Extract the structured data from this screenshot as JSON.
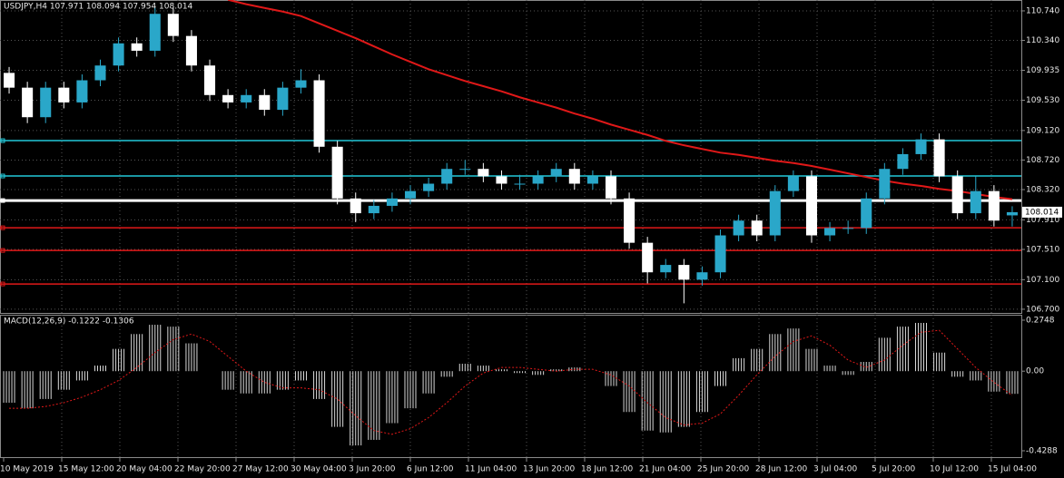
{
  "chart_data": {
    "type": "candlestick",
    "title": "USDJPY,H4  107.971 108.094 107.954 108.014",
    "xlabels": [
      "10 May 2019",
      "15 May 12:00",
      "20 May 04:00",
      "22 May 20:00",
      "27 May 12:00",
      "30 May 04:00",
      "3 Jun 20:00",
      "6 Jun 12:00",
      "11 Jun 04:00",
      "13 Jun 20:00",
      "18 Jun 12:00",
      "21 Jun 04:00",
      "25 Jun 20:00",
      "28 Jun 12:00",
      "3 Jul 04:00",
      "5 Jul 20:00",
      "10 Jul 12:00",
      "15 Jul 04:00"
    ],
    "open": [
      109.9,
      109.7,
      109.3,
      109.7,
      109.5,
      109.8,
      110.0,
      110.3,
      110.2,
      110.7,
      110.4,
      110.0,
      109.6,
      109.5,
      109.6,
      109.4,
      109.7,
      109.8,
      108.9,
      108.2,
      108.0,
      108.1,
      108.2,
      108.3,
      108.4,
      108.6,
      108.6,
      108.5,
      108.4,
      108.4,
      108.5,
      108.6,
      108.4,
      108.5,
      108.2,
      107.6,
      107.2,
      107.3,
      107.1,
      107.2,
      107.7,
      107.9,
      107.7,
      108.3,
      108.5,
      107.7,
      107.8,
      107.8,
      108.2,
      108.6,
      108.8,
      109.0,
      108.5,
      108.0,
      108.3,
      107.971
    ],
    "high": [
      109.98,
      109.78,
      109.78,
      109.78,
      109.88,
      110.08,
      110.38,
      110.38,
      110.78,
      110.78,
      110.48,
      110.08,
      109.68,
      109.68,
      109.68,
      109.78,
      109.95,
      109.88,
      108.98,
      108.28,
      108.18,
      108.28,
      108.38,
      108.48,
      108.68,
      108.72,
      108.68,
      108.58,
      108.52,
      108.58,
      108.68,
      108.68,
      108.58,
      108.58,
      108.28,
      107.68,
      107.38,
      107.38,
      107.28,
      107.78,
      107.98,
      107.98,
      108.38,
      108.58,
      108.58,
      107.88,
      107.9,
      108.28,
      108.68,
      108.88,
      109.08,
      109.08,
      108.58,
      108.5,
      108.38,
      108.094
    ],
    "low": [
      109.62,
      109.22,
      109.22,
      109.42,
      109.42,
      109.72,
      109.92,
      110.12,
      110.12,
      110.32,
      109.92,
      109.52,
      109.42,
      109.42,
      109.32,
      109.32,
      109.62,
      108.82,
      108.12,
      107.88,
      107.92,
      108.02,
      108.12,
      108.22,
      108.32,
      108.52,
      108.42,
      108.32,
      108.32,
      108.32,
      108.42,
      108.32,
      108.32,
      108.12,
      107.52,
      107.05,
      107.12,
      106.78,
      107.02,
      107.12,
      107.62,
      107.62,
      107.62,
      108.22,
      107.6,
      107.62,
      107.72,
      107.72,
      108.12,
      108.52,
      108.72,
      108.42,
      107.92,
      107.92,
      107.82,
      107.82
    ],
    "close": [
      109.7,
      109.3,
      109.7,
      109.5,
      109.8,
      110.0,
      110.3,
      110.2,
      110.7,
      110.4,
      110.0,
      109.6,
      109.5,
      109.6,
      109.4,
      109.7,
      109.8,
      108.9,
      108.2,
      108.0,
      108.1,
      108.2,
      108.3,
      108.4,
      108.6,
      108.6,
      108.5,
      108.4,
      108.4,
      108.5,
      108.6,
      108.4,
      108.5,
      108.2,
      107.6,
      107.2,
      107.3,
      107.1,
      107.2,
      107.7,
      107.9,
      107.7,
      108.3,
      108.5,
      107.7,
      107.8,
      107.8,
      108.2,
      108.6,
      108.8,
      109.0,
      108.5,
      108.0,
      108.3,
      107.9,
      108.014
    ],
    "bull_color": "#2aa7c9",
    "bear_color": "#ffffff",
    "ma": {
      "color": "#e01818",
      "values": [
        null,
        null,
        null,
        null,
        null,
        null,
        null,
        null,
        null,
        null,
        null,
        null,
        110.89,
        110.83,
        110.78,
        110.73,
        110.67,
        110.57,
        110.47,
        110.37,
        110.26,
        110.15,
        110.05,
        109.95,
        109.87,
        109.79,
        109.72,
        109.65,
        109.57,
        109.5,
        109.43,
        109.35,
        109.28,
        109.2,
        109.13,
        109.06,
        108.98,
        108.92,
        108.87,
        108.82,
        108.79,
        108.75,
        108.71,
        108.68,
        108.64,
        108.59,
        108.54,
        108.49,
        108.44,
        108.4,
        108.37,
        108.33,
        108.3,
        108.26,
        108.22,
        108.19
      ]
    },
    "levels": [
      {
        "value": 108.983,
        "color": "#22c8d8"
      },
      {
        "value": 108.504,
        "color": "#22c8d8"
      },
      {
        "value": 108.172,
        "color": "#ffffff"
      },
      {
        "value": 107.803,
        "color": "#e01818"
      },
      {
        "value": 107.496,
        "color": "#e01818"
      },
      {
        "value": 107.042,
        "color": "#e01818"
      }
    ],
    "last_price": 108.014,
    "ylim": [
      106.65,
      110.887
    ],
    "yticks": [
      {
        "value": 110.74,
        "label": "110.740"
      },
      {
        "value": 110.34,
        "label": "110.340"
      },
      {
        "value": 109.935,
        "label": "109.935"
      },
      {
        "value": 109.53,
        "label": "109.530"
      },
      {
        "value": 109.12,
        "label": "109.120"
      },
      {
        "value": 108.72,
        "label": "108.720"
      },
      {
        "value": 108.32,
        "label": "108.320"
      },
      {
        "value": 107.91,
        "label": "107.910"
      },
      {
        "value": 107.51,
        "label": "107.510"
      },
      {
        "value": 107.1,
        "label": "107.100"
      },
      {
        "value": 106.7,
        "label": "106.700"
      }
    ],
    "grid": true,
    "macd": {
      "title": "MACD(12,26,9) -0.1222 -0.1306",
      "histogram": [
        -0.17,
        -0.2,
        -0.15,
        -0.1,
        -0.05,
        0.03,
        0.12,
        0.2,
        0.25,
        0.24,
        0.15,
        0.0,
        -0.1,
        -0.12,
        -0.12,
        -0.1,
        -0.05,
        -0.15,
        -0.3,
        -0.4,
        -0.37,
        -0.28,
        -0.2,
        -0.12,
        -0.03,
        0.04,
        0.03,
        0.01,
        -0.01,
        -0.02,
        0.01,
        0.02,
        0.0,
        -0.08,
        -0.22,
        -0.32,
        -0.33,
        -0.3,
        -0.22,
        -0.08,
        0.07,
        0.12,
        0.2,
        0.23,
        0.12,
        0.03,
        -0.02,
        0.05,
        0.18,
        0.24,
        0.26,
        0.1,
        -0.03,
        -0.05,
        -0.11,
        -0.1222
      ],
      "signal": [
        -0.2,
        -0.2,
        -0.19,
        -0.17,
        -0.14,
        -0.1,
        -0.05,
        0.02,
        0.1,
        0.17,
        0.2,
        0.16,
        0.08,
        0.0,
        -0.06,
        -0.09,
        -0.09,
        -0.1,
        -0.15,
        -0.24,
        -0.32,
        -0.34,
        -0.31,
        -0.25,
        -0.17,
        -0.08,
        -0.01,
        0.02,
        0.02,
        0.01,
        0.0,
        0.01,
        0.01,
        -0.02,
        -0.08,
        -0.17,
        -0.25,
        -0.29,
        -0.28,
        -0.23,
        -0.13,
        -0.02,
        0.08,
        0.16,
        0.19,
        0.14,
        0.06,
        0.02,
        0.06,
        0.14,
        0.21,
        0.22,
        0.12,
        0.02,
        -0.06,
        -0.1306
      ],
      "histogram_color": "#d8d8d8",
      "signal_color": "#e01818",
      "ylim": [
        -0.468,
        0.304
      ],
      "yticks": [
        0.2748,
        {
          "value": 0,
          "label": "0.00"
        },
        -0.4288
      ]
    }
  }
}
